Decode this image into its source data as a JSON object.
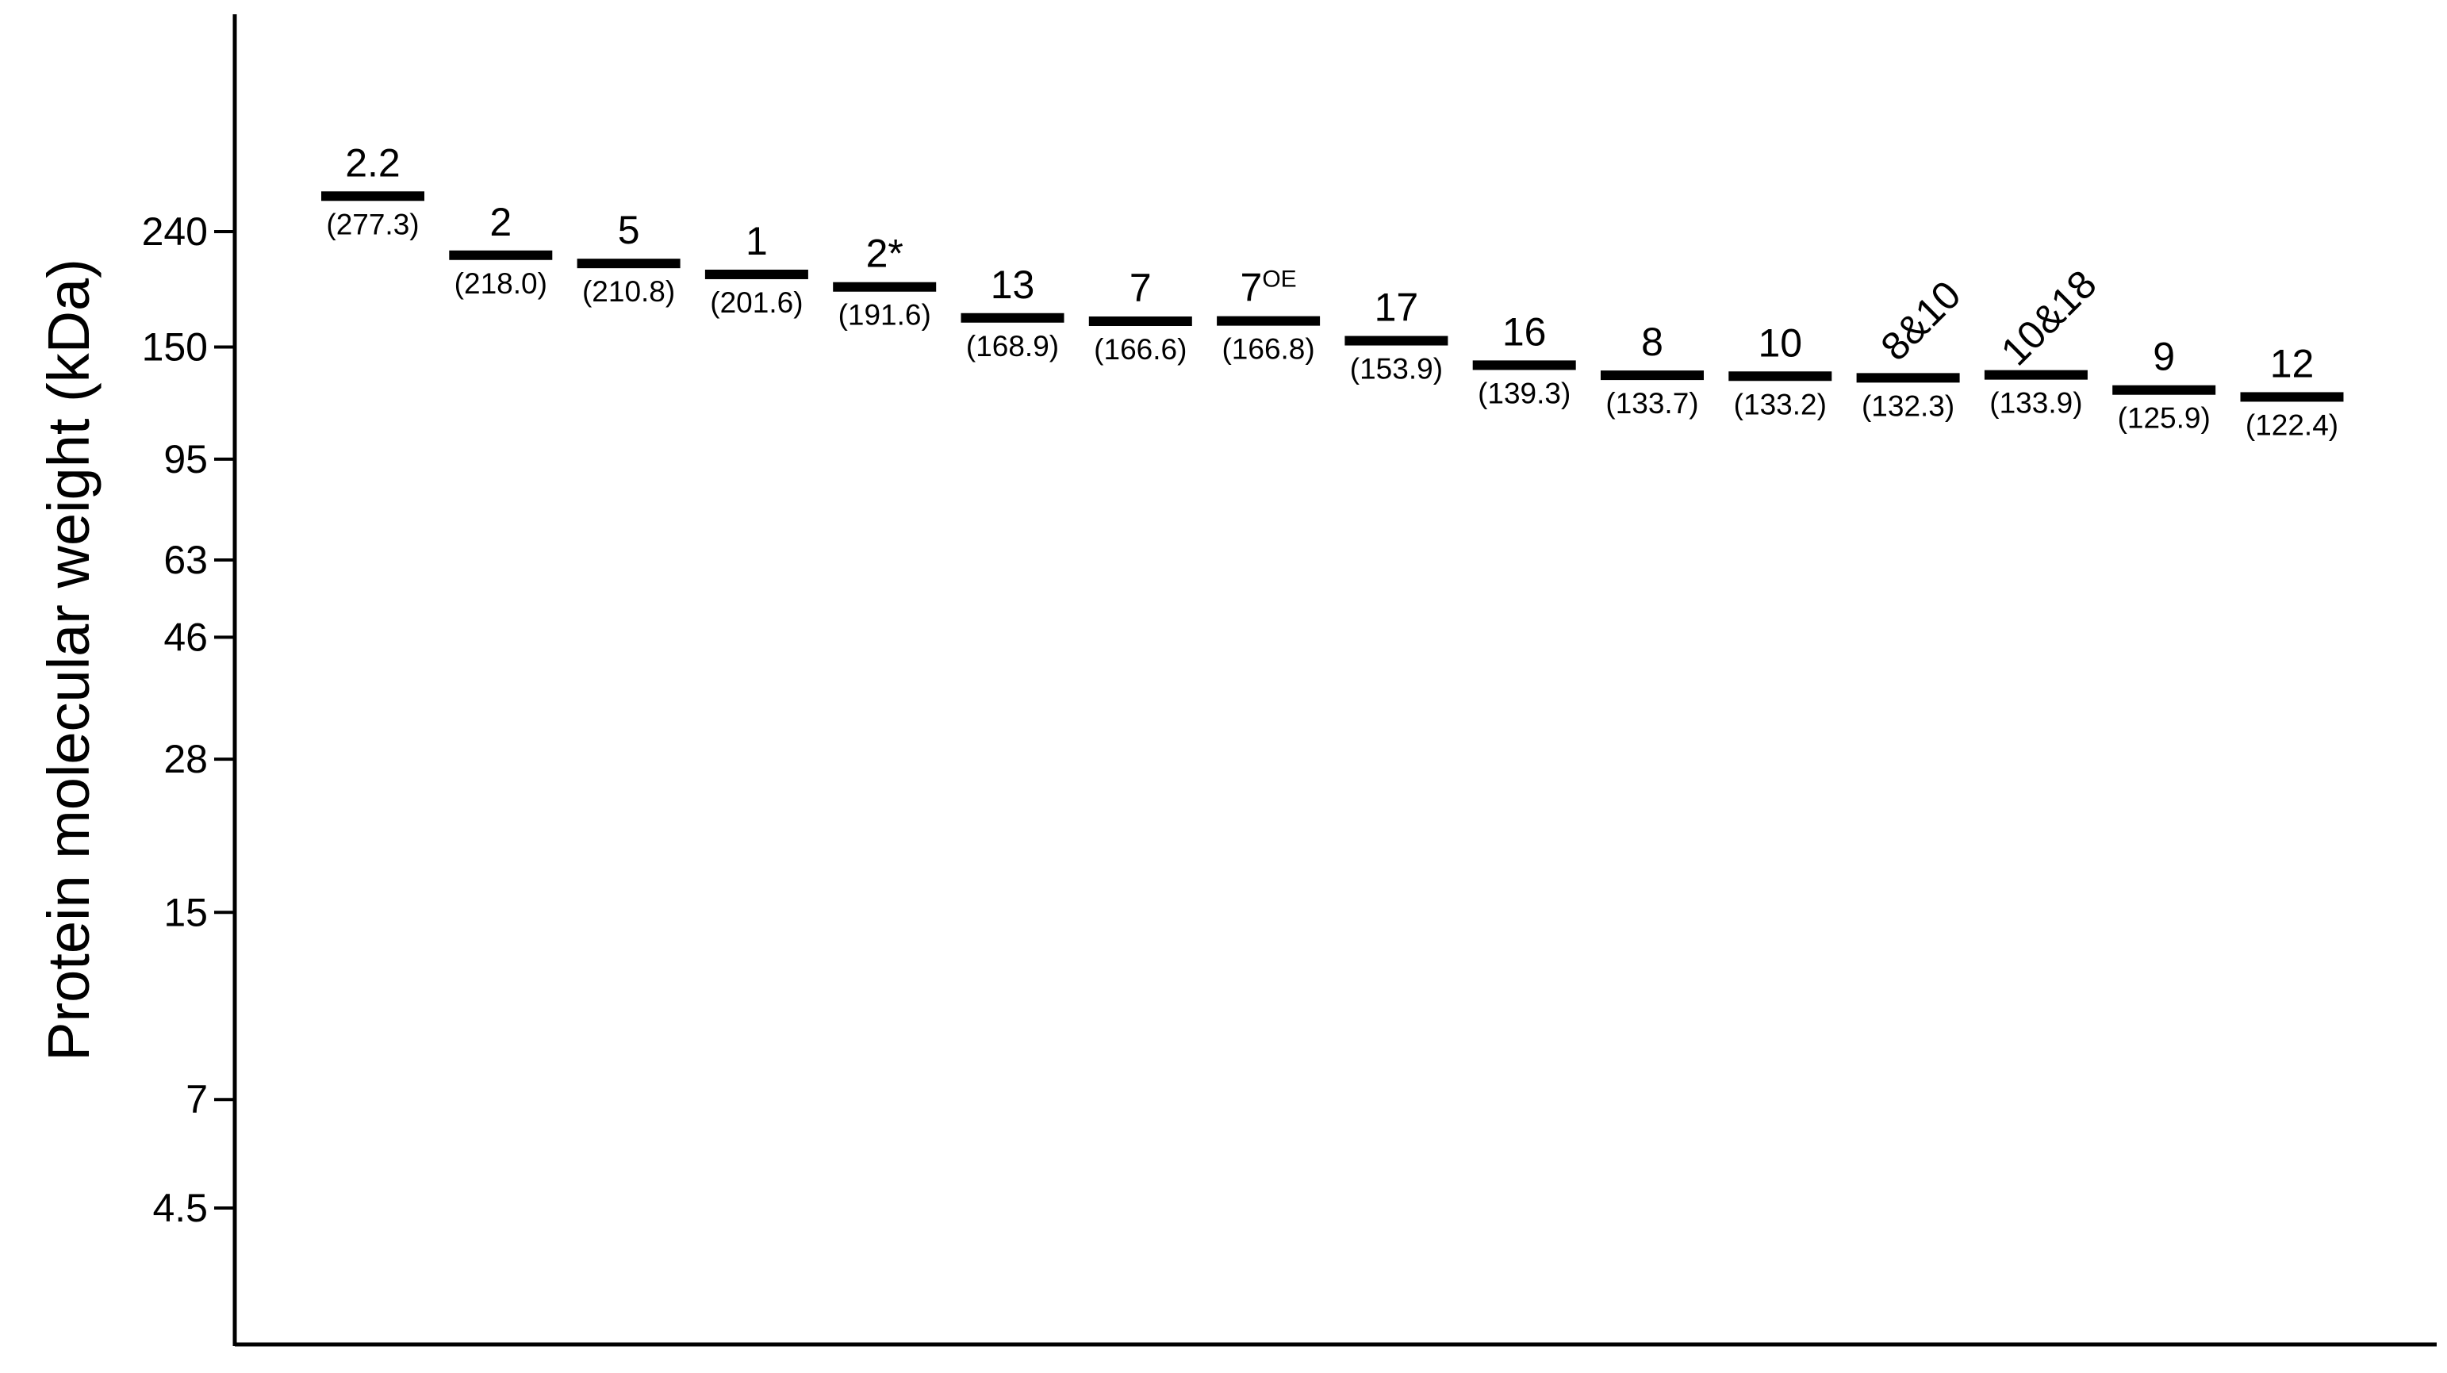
{
  "chart_data": {
    "type": "scatter",
    "ylabel": "Protein molecular weight (kDa)",
    "yticks": [
      {
        "value": 240,
        "label": "240"
      },
      {
        "value": 150,
        "label": "150"
      },
      {
        "value": 95,
        "label": "95"
      },
      {
        "value": 63,
        "label": "63"
      },
      {
        "value": 46,
        "label": "46"
      },
      {
        "value": 28,
        "label": "28"
      },
      {
        "value": 15,
        "label": "15"
      },
      {
        "value": 7,
        "label": "7"
      },
      {
        "value": 4.5,
        "label": "4.5"
      }
    ],
    "bands": [
      {
        "label": "2.2",
        "sup": "",
        "mw": 277.3,
        "mw_text": "(277.3)",
        "rotated": false
      },
      {
        "label": "2",
        "sup": "",
        "mw": 218.0,
        "mw_text": "(218.0)",
        "rotated": false
      },
      {
        "label": "5",
        "sup": "",
        "mw": 210.8,
        "mw_text": "(210.8)",
        "rotated": false
      },
      {
        "label": "1",
        "sup": "",
        "mw": 201.6,
        "mw_text": "(201.6)",
        "rotated": false
      },
      {
        "label": "2*",
        "sup": "",
        "mw": 191.6,
        "mw_text": "(191.6)",
        "rotated": false
      },
      {
        "label": "13",
        "sup": "",
        "mw": 168.9,
        "mw_text": "(168.9)",
        "rotated": false
      },
      {
        "label": "7",
        "sup": "",
        "mw": 166.6,
        "mw_text": "(166.6)",
        "rotated": false
      },
      {
        "label": "7",
        "sup": "OE",
        "mw": 166.8,
        "mw_text": "(166.8)",
        "rotated": false
      },
      {
        "label": "17",
        "sup": "",
        "mw": 153.9,
        "mw_text": "(153.9)",
        "rotated": false
      },
      {
        "label": "16",
        "sup": "",
        "mw": 139.3,
        "mw_text": "(139.3)",
        "rotated": false
      },
      {
        "label": "8",
        "sup": "",
        "mw": 133.7,
        "mw_text": "(133.7)",
        "rotated": false
      },
      {
        "label": "10",
        "sup": "",
        "mw": 133.2,
        "mw_text": "(133.2)",
        "rotated": false
      },
      {
        "label": "8&10",
        "sup": "",
        "mw": 132.3,
        "mw_text": "(132.3)",
        "rotated": true
      },
      {
        "label": "10&18",
        "sup": "",
        "mw": 133.9,
        "mw_text": "(133.9)",
        "rotated": true
      },
      {
        "label": "9",
        "sup": "",
        "mw": 125.9,
        "mw_text": "(125.9)",
        "rotated": false
      },
      {
        "label": "12",
        "sup": "",
        "mw": 122.4,
        "mw_text": "(122.4)",
        "rotated": false
      }
    ],
    "grid": false,
    "legend": "none"
  }
}
